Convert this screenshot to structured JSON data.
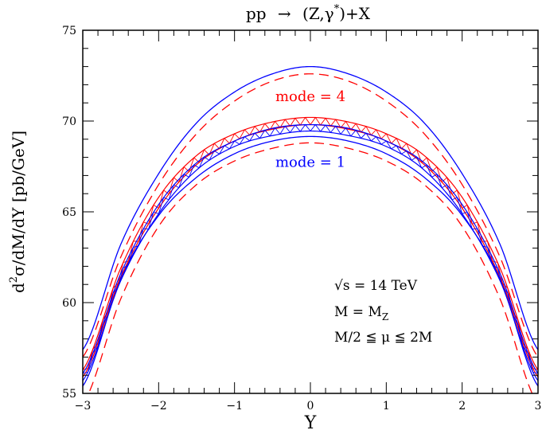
{
  "chart_data": {
    "type": "line",
    "title_parts": {
      "lhs": "pp",
      "arrow": "→",
      "open": "(Z,γ",
      "sup": "*",
      "close": ")+X"
    },
    "xlabel": "Y",
    "ylabel_parts": {
      "d": "d",
      "sup": "2",
      "rest": "σ/dM/dY [pb/GeV]"
    },
    "xlim": [
      -3,
      3
    ],
    "ylim": [
      55,
      75
    ],
    "x_ticks": [
      -3,
      -2,
      -1,
      0,
      1,
      2,
      3
    ],
    "y_ticks": [
      55,
      60,
      65,
      70,
      75
    ],
    "grid": false,
    "series_labels": [
      {
        "text": "mode = 4",
        "color": "#ff0000",
        "x": 0.0,
        "y": 71.35
      },
      {
        "text": "mode = 1",
        "color": "#0000ff",
        "x": 0.0,
        "y": 67.75
      }
    ],
    "annotations": {
      "sqrt_line": {
        "root": "√",
        "rest": "s = 14 TeV"
      },
      "mass_line": {
        "lhs": "M = M",
        "sub": "Z"
      },
      "scale_line": {
        "text": "M/2 ≦ μ ≦ 2M"
      }
    },
    "series": [
      {
        "color": "#0000ff",
        "style": "solid",
        "x": [
          -3,
          -2.5,
          -2,
          -1.5,
          -1,
          -0.5,
          0,
          0.5,
          1,
          1.5,
          2,
          2.5,
          3
        ],
        "y": [
          57.4,
          63.2,
          67.1,
          69.9,
          71.6,
          72.6,
          73.0,
          72.6,
          71.6,
          69.9,
          67.1,
          63.2,
          57.4
        ]
      },
      {
        "color": "#0000ff",
        "style": "solid",
        "x": [
          -3,
          -2.5,
          -2,
          -1.5,
          -1,
          -0.5,
          0,
          0.5,
          1,
          1.5,
          2,
          2.5,
          3
        ],
        "y": [
          55.4,
          61.3,
          64.8,
          66.9,
          68.2,
          68.9,
          69.15,
          68.9,
          68.2,
          66.9,
          64.8,
          61.3,
          55.4
        ]
      },
      {
        "color": "#ff0000",
        "style": "dashed",
        "x": [
          -3,
          -2.5,
          -2,
          -1.5,
          -1,
          -0.5,
          0,
          0.5,
          1,
          1.5,
          2,
          2.5,
          3
        ],
        "y": [
          57.0,
          62.5,
          66.5,
          69.3,
          71.1,
          72.2,
          72.6,
          72.2,
          71.1,
          69.3,
          66.5,
          62.5,
          57.0
        ]
      },
      {
        "color": "#ff0000",
        "style": "dashed",
        "x": [
          -3,
          -2.5,
          -2,
          -1.5,
          -1,
          -0.5,
          0,
          0.5,
          1,
          1.5,
          2,
          2.5,
          3
        ],
        "y": [
          54.4,
          60.2,
          64.2,
          66.5,
          67.8,
          68.5,
          68.8,
          68.5,
          67.8,
          66.5,
          64.2,
          60.2,
          54.4
        ]
      },
      {
        "color": "#ff0000",
        "style": "band",
        "x": [
          -3,
          -2.5,
          -2,
          -1.5,
          -1,
          -0.5,
          0,
          0.5,
          1,
          1.5,
          2,
          2.5,
          3
        ],
        "upper": [
          56.3,
          61.9,
          65.8,
          68.1,
          69.3,
          69.95,
          70.2,
          69.95,
          69.3,
          68.1,
          65.8,
          61.9,
          56.3
        ],
        "lower": [
          55.9,
          61.4,
          65.2,
          67.6,
          68.9,
          69.55,
          69.8,
          69.55,
          68.9,
          67.6,
          65.2,
          61.4,
          55.9
        ]
      },
      {
        "color": "#0000ff",
        "style": "band",
        "x": [
          -3,
          -2.5,
          -2,
          -1.5,
          -1,
          -0.5,
          0,
          0.5,
          1,
          1.5,
          2,
          2.5,
          3
        ],
        "upper": [
          56.1,
          61.6,
          65.4,
          67.7,
          68.9,
          69.6,
          69.8,
          69.6,
          68.9,
          67.7,
          65.4,
          61.6,
          56.1
        ],
        "lower": [
          55.7,
          61.2,
          64.9,
          67.3,
          68.6,
          69.2,
          69.45,
          69.2,
          68.6,
          67.3,
          64.9,
          61.2,
          55.7
        ]
      }
    ]
  }
}
